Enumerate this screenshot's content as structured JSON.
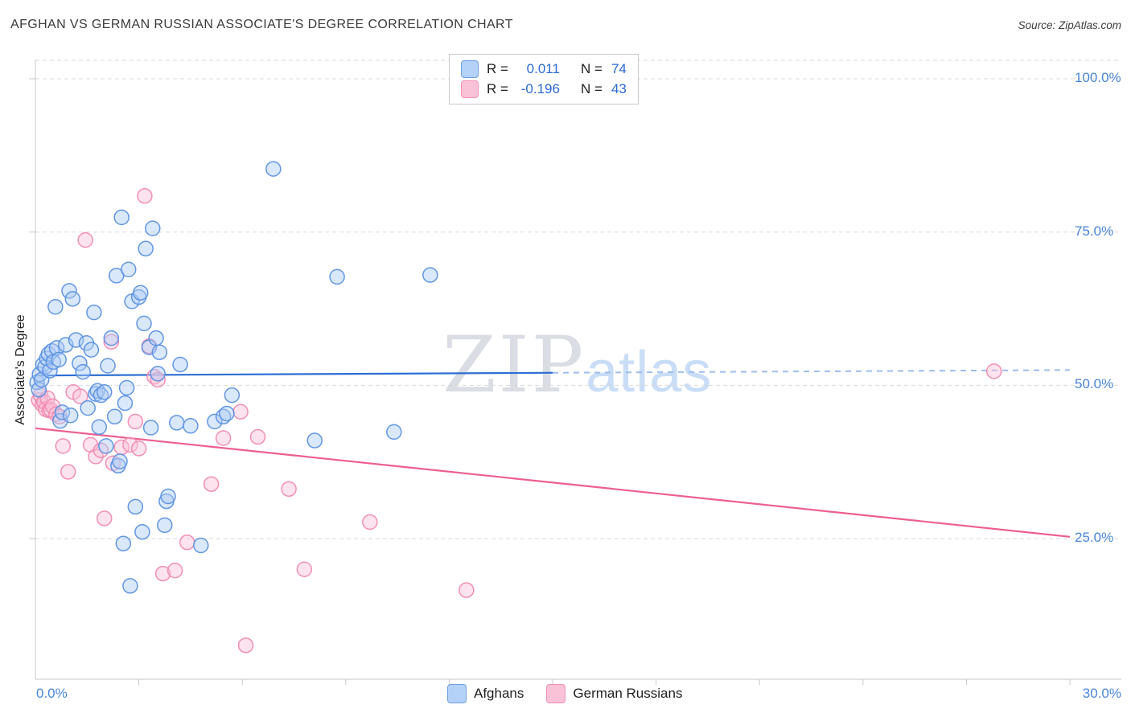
{
  "header": {
    "title": "AFGHAN VS GERMAN RUSSIAN ASSOCIATE'S DEGREE CORRELATION CHART",
    "source_prefix": "Source:",
    "source_name": "ZipAtlas.com"
  },
  "watermark": {
    "zip": "ZIP",
    "atlas": "atlas"
  },
  "axes": {
    "y_label": "Associate's Degree",
    "y_ticks": [
      {
        "label": "100.0%",
        "value": 100
      },
      {
        "label": "75.0%",
        "value": 75
      },
      {
        "label": "50.0%",
        "value": 50
      },
      {
        "label": "25.0%",
        "value": 25
      }
    ],
    "x_min_label": "0.0%",
    "x_max_label": "30.0%"
  },
  "legend_box": {
    "r_label": "R =",
    "n_label": "N =",
    "series": [
      {
        "r": "0.011",
        "n": "74"
      },
      {
        "r": "-0.196",
        "n": "43"
      }
    ]
  },
  "bottom_legend": [
    {
      "label": "Afghans"
    },
    {
      "label": "German Russians"
    }
  ],
  "colors": {
    "blue_fill": "#aecdf6",
    "blue_stroke": "#5b90e2",
    "pink_fill": "#fac2d7",
    "pink_stroke": "#f08ab1",
    "blue_trend": "#2e6fd2",
    "blue_trend_dash": "#9dbdeb",
    "pink_trend": "#ec5f92",
    "grid": "#d9d9d9",
    "spine": "#c9c9c9",
    "axis_label_blue": "#4a86d8"
  },
  "chart_data": {
    "type": "scatter",
    "title": "AFGHAN VS GERMAN RUSSIAN ASSOCIATE'S DEGREE CORRELATION CHART",
    "xlabel": "",
    "ylabel": "Associate's Degree",
    "x_range": [
      0,
      30
    ],
    "y_range": [
      0,
      105
    ],
    "grid": "horizontal-dashed",
    "legend_position": "bottom-center",
    "series": [
      {
        "name": "Afghans",
        "R": 0.011,
        "N": 74,
        "fill": "#aecdf6",
        "stroke": "#5b90e2",
        "points": [
          [
            0.05,
            50.5
          ],
          [
            0.1,
            49.3
          ],
          [
            0.12,
            51.8
          ],
          [
            0.18,
            50.9
          ],
          [
            0.22,
            53.4
          ],
          [
            0.28,
            53.0
          ],
          [
            0.33,
            54.4
          ],
          [
            0.38,
            55.1
          ],
          [
            0.42,
            52.4
          ],
          [
            0.48,
            55.6
          ],
          [
            0.52,
            53.8
          ],
          [
            0.58,
            62.8
          ],
          [
            0.62,
            56.1
          ],
          [
            0.68,
            54.2
          ],
          [
            0.72,
            44.2
          ],
          [
            0.78,
            45.6
          ],
          [
            0.88,
            56.6
          ],
          [
            0.98,
            65.4
          ],
          [
            1.02,
            45.1
          ],
          [
            1.08,
            64.1
          ],
          [
            1.18,
            57.4
          ],
          [
            1.28,
            53.6
          ],
          [
            1.38,
            52.2
          ],
          [
            1.48,
            56.9
          ],
          [
            1.52,
            46.3
          ],
          [
            1.62,
            55.8
          ],
          [
            1.7,
            61.9
          ],
          [
            1.75,
            48.6
          ],
          [
            1.8,
            49.1
          ],
          [
            1.85,
            43.2
          ],
          [
            1.9,
            48.4
          ],
          [
            2.0,
            48.9
          ],
          [
            2.05,
            40.1
          ],
          [
            2.1,
            53.2
          ],
          [
            2.2,
            57.7
          ],
          [
            2.3,
            44.9
          ],
          [
            2.35,
            67.9
          ],
          [
            2.4,
            36.9
          ],
          [
            2.45,
            37.6
          ],
          [
            2.5,
            77.4
          ],
          [
            2.55,
            24.2
          ],
          [
            2.6,
            47.1
          ],
          [
            2.65,
            49.6
          ],
          [
            2.7,
            68.9
          ],
          [
            2.75,
            17.3
          ],
          [
            2.8,
            63.7
          ],
          [
            2.9,
            30.2
          ],
          [
            3.0,
            64.4
          ],
          [
            3.05,
            65.1
          ],
          [
            3.1,
            26.1
          ],
          [
            3.15,
            60.1
          ],
          [
            3.2,
            72.3
          ],
          [
            3.3,
            56.2
          ],
          [
            3.35,
            43.1
          ],
          [
            3.4,
            75.6
          ],
          [
            3.5,
            57.7
          ],
          [
            3.55,
            51.9
          ],
          [
            3.6,
            55.4
          ],
          [
            3.75,
            27.2
          ],
          [
            3.8,
            31.1
          ],
          [
            3.85,
            31.9
          ],
          [
            4.1,
            43.9
          ],
          [
            4.2,
            53.4
          ],
          [
            4.5,
            43.4
          ],
          [
            4.8,
            23.9
          ],
          [
            5.2,
            44.1
          ],
          [
            5.45,
            44.9
          ],
          [
            5.55,
            45.4
          ],
          [
            5.7,
            48.4
          ],
          [
            6.9,
            85.3
          ],
          [
            8.1,
            41.0
          ],
          [
            8.75,
            67.7
          ],
          [
            10.4,
            42.4
          ],
          [
            11.45,
            68.0
          ]
        ]
      },
      {
        "name": "German Russians",
        "R": -0.196,
        "N": 43,
        "fill": "#fac2d7",
        "stroke": "#f08ab1",
        "points": [
          [
            0.1,
            47.6
          ],
          [
            0.15,
            48.4
          ],
          [
            0.2,
            46.9
          ],
          [
            0.25,
            47.3
          ],
          [
            0.3,
            46.1
          ],
          [
            0.35,
            47.9
          ],
          [
            0.4,
            45.9
          ],
          [
            0.45,
            46.0
          ],
          [
            0.5,
            46.6
          ],
          [
            0.6,
            45.3
          ],
          [
            0.7,
            44.9
          ],
          [
            0.8,
            40.1
          ],
          [
            0.95,
            35.9
          ],
          [
            1.1,
            48.9
          ],
          [
            1.3,
            48.2
          ],
          [
            1.45,
            73.7
          ],
          [
            1.6,
            40.3
          ],
          [
            1.75,
            38.4
          ],
          [
            1.9,
            39.4
          ],
          [
            2.0,
            28.3
          ],
          [
            2.2,
            57.1
          ],
          [
            2.25,
            37.3
          ],
          [
            2.5,
            39.9
          ],
          [
            2.75,
            40.3
          ],
          [
            2.9,
            44.1
          ],
          [
            3.0,
            39.7
          ],
          [
            3.17,
            80.9
          ],
          [
            3.3,
            56.4
          ],
          [
            3.45,
            51.4
          ],
          [
            3.55,
            50.9
          ],
          [
            3.7,
            19.3
          ],
          [
            4.05,
            19.8
          ],
          [
            4.4,
            24.4
          ],
          [
            5.1,
            33.9
          ],
          [
            5.45,
            41.4
          ],
          [
            5.95,
            45.7
          ],
          [
            6.1,
            7.6
          ],
          [
            6.45,
            41.6
          ],
          [
            7.35,
            33.1
          ],
          [
            7.8,
            20.0
          ],
          [
            9.7,
            27.7
          ],
          [
            12.5,
            16.6
          ],
          [
            27.8,
            52.3
          ]
        ]
      }
    ],
    "trend_lines": [
      {
        "series": "Afghans",
        "x0": 0,
        "y0": 51.6,
        "x1": 30,
        "y1": 52.5,
        "solid_to": 15
      },
      {
        "series": "German Russians",
        "x0": 0,
        "y0": 43.0,
        "x1": 30,
        "y1": 25.3
      }
    ]
  }
}
